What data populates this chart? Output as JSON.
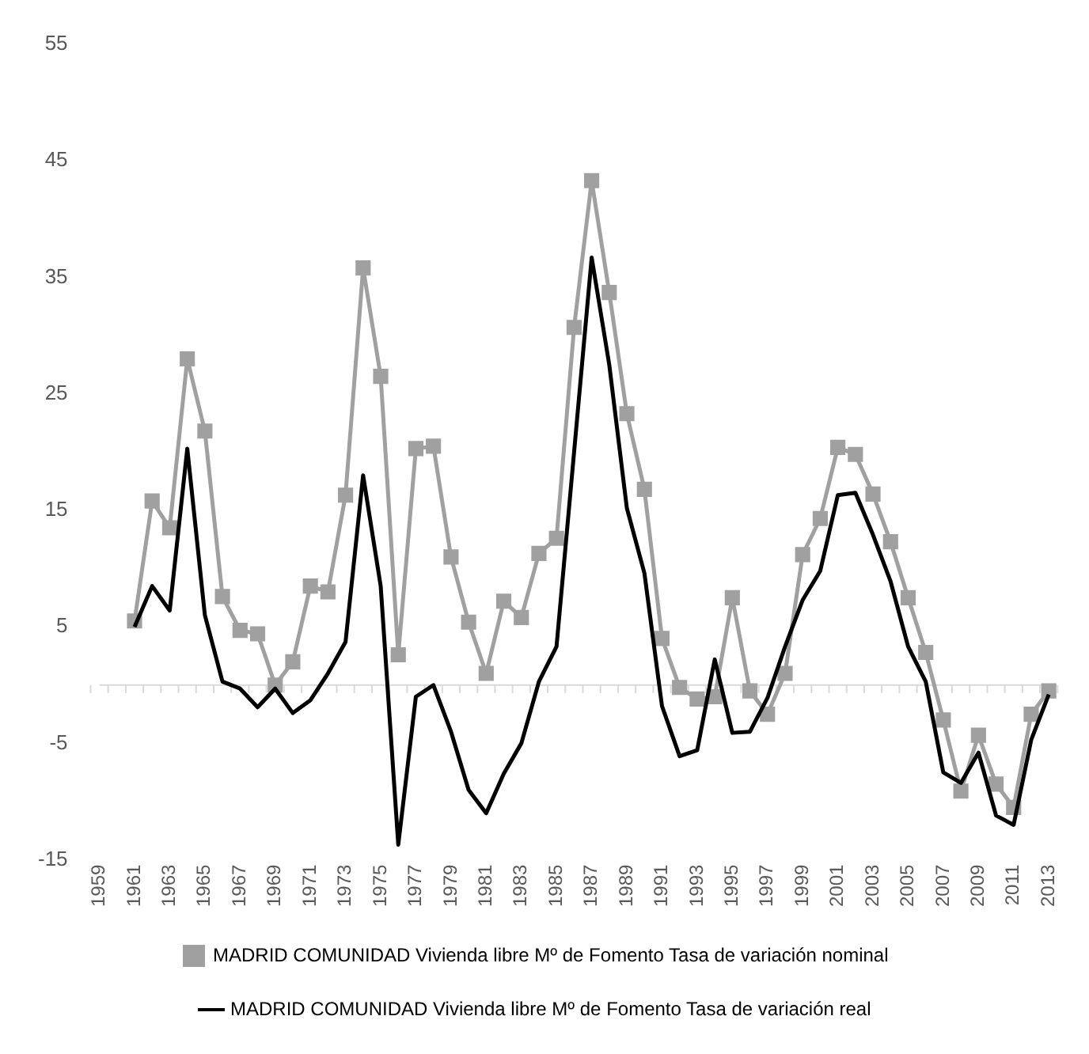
{
  "chart_data": {
    "type": "line",
    "categories": [
      "1959",
      null,
      "1961",
      null,
      "1963",
      null,
      "1965",
      null,
      "1967",
      null,
      "1969",
      null,
      "1971",
      null,
      "1973",
      null,
      "1975",
      null,
      "1977",
      null,
      "1979",
      null,
      "1981",
      null,
      "1983",
      null,
      "1985",
      null,
      "1987",
      null,
      "1989",
      null,
      "1991",
      null,
      "1993",
      null,
      "1995",
      null,
      "1997",
      null,
      "1999",
      null,
      "2001",
      null,
      "2003",
      null,
      "2005",
      null,
      "2007",
      null,
      "2009",
      null,
      "2011",
      null,
      "2013"
    ],
    "series": [
      {
        "name": "MADRID COMUNIDAD Vivienda libre Mº de Fomento Tasa de variación nominal",
        "color": "#a0a0a0",
        "marker": "square",
        "values": [
          null,
          null,
          5.5,
          15.8,
          13.5,
          28,
          21.8,
          7.6,
          4.7,
          4.4,
          0,
          2,
          8.5,
          8,
          16.3,
          35.8,
          26.5,
          2.6,
          20.3,
          20.5,
          11,
          5.4,
          1,
          7.2,
          5.8,
          11.3,
          12.6,
          30.7,
          43.3,
          33.7,
          23.3,
          16.8,
          4,
          -0.2,
          -1.2,
          -1,
          7.5,
          -0.5,
          -2.5,
          1,
          11.2,
          14.3,
          20.4,
          19.8,
          16.4,
          12.3,
          7.5,
          2.8,
          -3,
          -9.1,
          -4.3,
          -8.5,
          -10.5,
          -2.5,
          -0.5
        ]
      },
      {
        "name": "MADRID COMUNIDAD Vivienda libre Mº de Fomento Tasa de variación real",
        "color": "#000000",
        "marker": "none",
        "values": [
          null,
          null,
          5,
          8.5,
          6.4,
          20.3,
          6,
          0.3,
          -0.3,
          -1.9,
          -0.3,
          -2.4,
          -1.3,
          1,
          3.7,
          18,
          8.5,
          -13.7,
          -1,
          0,
          -4,
          -9,
          -11,
          -7.6,
          -5,
          0.3,
          3.3,
          20,
          36.7,
          27.5,
          15.2,
          9.6,
          -1.8,
          -6.1,
          -5.6,
          2.2,
          -4.1,
          -4,
          -1.1,
          3.3,
          7.3,
          9.8,
          16.3,
          16.5,
          12.9,
          8.9,
          3.3,
          0.3,
          -7.5,
          -8.4,
          -5.8,
          -11.2,
          -12,
          -4.7,
          -0.8
        ]
      }
    ],
    "ylim": [
      -15,
      55
    ],
    "yticks": [
      -15,
      -5,
      5,
      15,
      25,
      35,
      45,
      55
    ],
    "ref_lines": [
      {
        "axis": "y",
        "value": 0,
        "color": "#d9d9d9"
      }
    ],
    "grid": false,
    "legend": "bottom"
  }
}
